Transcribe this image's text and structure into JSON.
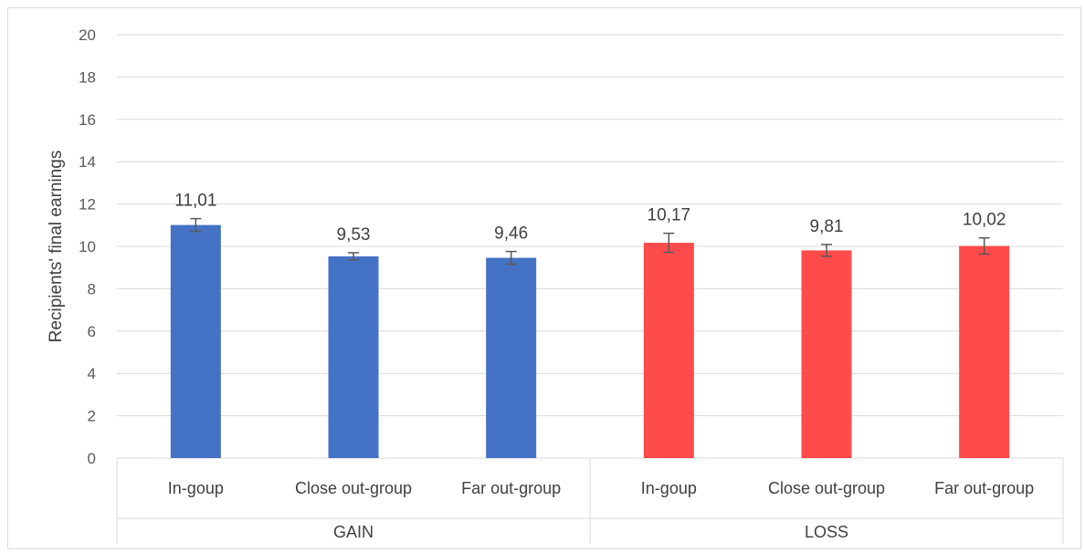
{
  "chart_data": {
    "type": "bar",
    "ylabel": "Recipients' final earnings",
    "ylim": [
      0,
      20
    ],
    "y_ticks": [
      0,
      2,
      4,
      6,
      8,
      10,
      12,
      14,
      16,
      18,
      20
    ],
    "grid": true,
    "groups": [
      {
        "name": "GAIN",
        "color": "#4472c4",
        "categories": [
          "In-goup",
          "Close out-group",
          "Far out-group"
        ],
        "values": [
          11.01,
          9.53,
          9.46
        ],
        "labels": [
          "11,01",
          "9,53",
          "9,46"
        ],
        "errors": [
          0.3,
          0.17,
          0.3
        ]
      },
      {
        "name": "LOSS",
        "color": "#ff4b4b",
        "categories": [
          "In-goup",
          "Close out-group",
          "Far out-group"
        ],
        "values": [
          10.17,
          9.81,
          10.02
        ],
        "labels": [
          "10,17",
          "9,81",
          "10,02"
        ],
        "errors": [
          0.45,
          0.28,
          0.38
        ]
      }
    ]
  }
}
